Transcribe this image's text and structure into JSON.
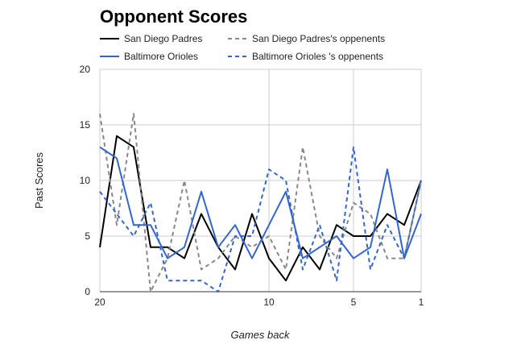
{
  "chart_data": {
    "type": "line",
    "title": "Opponent Scores",
    "xlabel": "Games back",
    "ylabel": "Past Scores",
    "xlim": [
      20,
      1
    ],
    "ylim": [
      0,
      20
    ],
    "x_ticks": [
      20,
      10,
      5,
      1
    ],
    "y_ticks": [
      0,
      5,
      10,
      15,
      20
    ],
    "grid": true,
    "legend_position": "top",
    "x": [
      20,
      19,
      18,
      17,
      16,
      15,
      14,
      13,
      12,
      11,
      10,
      9,
      8,
      7,
      6,
      5,
      4,
      3,
      2,
      1
    ],
    "series": [
      {
        "name": "San Diego Padres",
        "color": "#000000",
        "dash": false,
        "values": [
          4,
          14,
          13,
          4,
          4,
          3,
          7,
          4,
          2,
          7,
          3,
          1,
          4,
          2,
          6,
          5,
          5,
          7,
          6,
          10
        ]
      },
      {
        "name": "San Diego Padres's oppenents",
        "color": "#888888",
        "dash": true,
        "values": [
          16,
          6,
          16,
          0,
          3,
          10,
          2,
          3,
          5,
          4,
          5,
          2,
          13,
          5,
          3,
          8,
          7,
          3,
          3,
          10
        ]
      },
      {
        "name": "Baltimore Orioles",
        "color": "#3366cc",
        "dash": false,
        "values": [
          13,
          12,
          6,
          6,
          3,
          4,
          9,
          4,
          6,
          3,
          6,
          9,
          3,
          4,
          5,
          3,
          4,
          11,
          3,
          7
        ]
      },
      {
        "name": "Baltimore Orioles 's oppenents",
        "color": "#3366cc",
        "dash": true,
        "values": [
          9,
          7,
          5,
          8,
          1,
          1,
          1,
          0,
          5,
          5,
          11,
          10,
          2,
          6,
          1,
          13,
          2,
          6,
          3,
          10
        ]
      }
    ]
  }
}
